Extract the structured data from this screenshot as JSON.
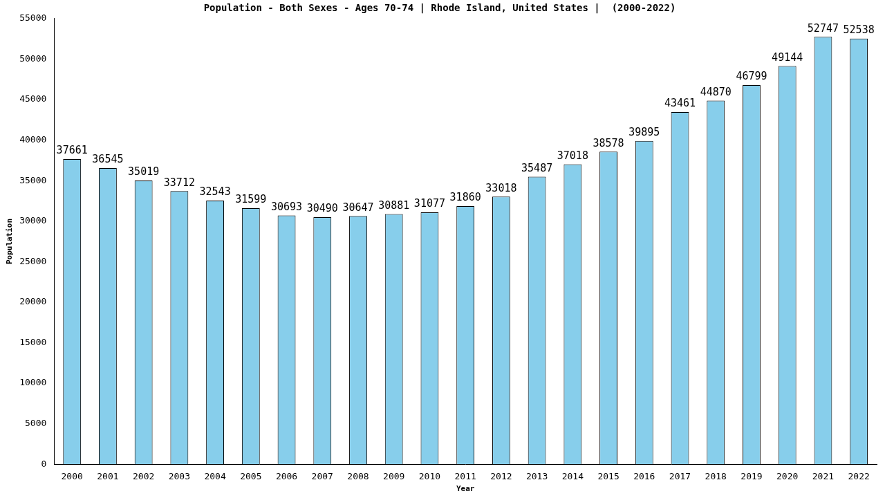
{
  "chart_data": {
    "type": "bar",
    "title": "Population - Both Sexes - Ages 70-74 | Rhode Island, United States |  (2000-2022)",
    "x_label": "Year",
    "y_label": "Population",
    "categories": [
      "2000",
      "2001",
      "2002",
      "2003",
      "2004",
      "2005",
      "2006",
      "2007",
      "2008",
      "2009",
      "2010",
      "2011",
      "2012",
      "2013",
      "2014",
      "2015",
      "2016",
      "2017",
      "2018",
      "2019",
      "2020",
      "2021",
      "2022"
    ],
    "values": [
      37661,
      36545,
      35019,
      33712,
      32543,
      31599,
      30693,
      30490,
      30647,
      30881,
      31077,
      31860,
      33018,
      35487,
      37018,
      38578,
      39895,
      43461,
      44870,
      46799,
      49144,
      52747,
      52538
    ],
    "color": "#87ceeb",
    "ylim": [
      0,
      55000
    ],
    "yticks": [
      0,
      5000,
      10000,
      15000,
      20000,
      25000,
      30000,
      35000,
      40000,
      45000,
      50000,
      55000
    ],
    "grid": false,
    "data_labels": true
  }
}
